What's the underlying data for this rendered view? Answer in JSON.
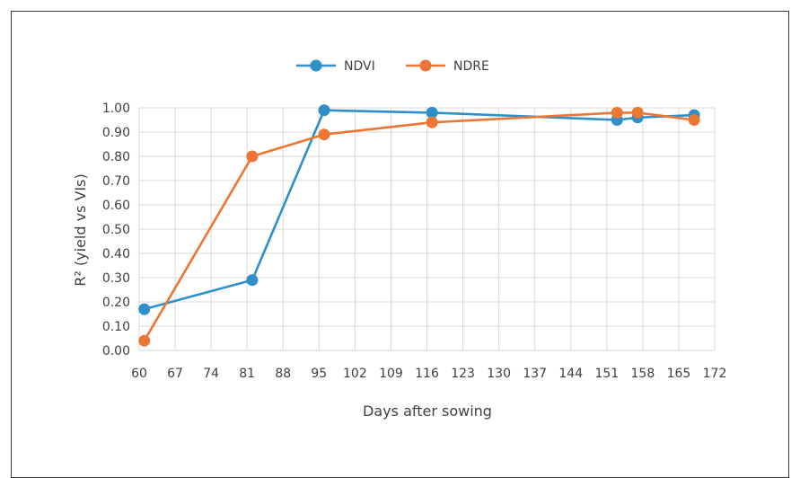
{
  "chart_data": {
    "type": "line",
    "xlabel": "Days after sowing",
    "ylabel": "R² (yield vs VIs)",
    "xlim": [
      60,
      172
    ],
    "ylim": [
      0,
      1
    ],
    "x_ticks": [
      "60",
      "67",
      "74",
      "81",
      "88",
      "95",
      "102",
      "109",
      "116",
      "123",
      "130",
      "137",
      "144",
      "151",
      "158",
      "165",
      "172"
    ],
    "y_ticks": [
      "0.00",
      "0.10",
      "0.20",
      "0.30",
      "0.40",
      "0.50",
      "0.60",
      "0.70",
      "0.80",
      "0.90",
      "1.00"
    ],
    "grid": true,
    "legend_position": "top",
    "series": [
      {
        "name": "NDVI",
        "color": "#2e8fc9",
        "x": [
          61,
          82,
          96,
          117,
          153,
          157,
          168
        ],
        "y": [
          0.17,
          0.29,
          0.99,
          0.98,
          0.95,
          0.96,
          0.97
        ]
      },
      {
        "name": "NDRE",
        "color": "#ec7634",
        "x": [
          61,
          82,
          96,
          117,
          153,
          157,
          168
        ],
        "y": [
          0.04,
          0.8,
          0.89,
          0.94,
          0.98,
          0.98,
          0.95
        ]
      }
    ]
  }
}
